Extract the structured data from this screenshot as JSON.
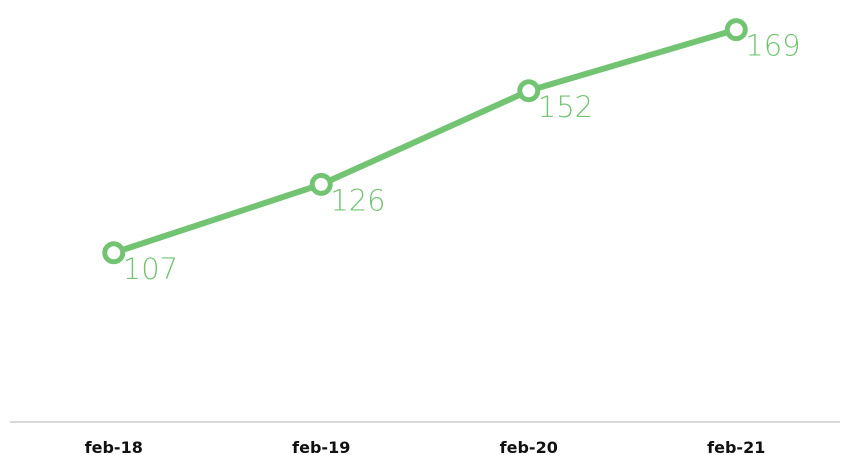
{
  "chart_data": {
    "type": "line",
    "categories": [
      "feb-18",
      "feb-19",
      "feb-20",
      "feb-21"
    ],
    "series": [
      {
        "color": "#72c472",
        "values": [
          107,
          126,
          152,
          169
        ]
      }
    ],
    "ylim": [
      60,
      170
    ],
    "data_labels": true
  }
}
